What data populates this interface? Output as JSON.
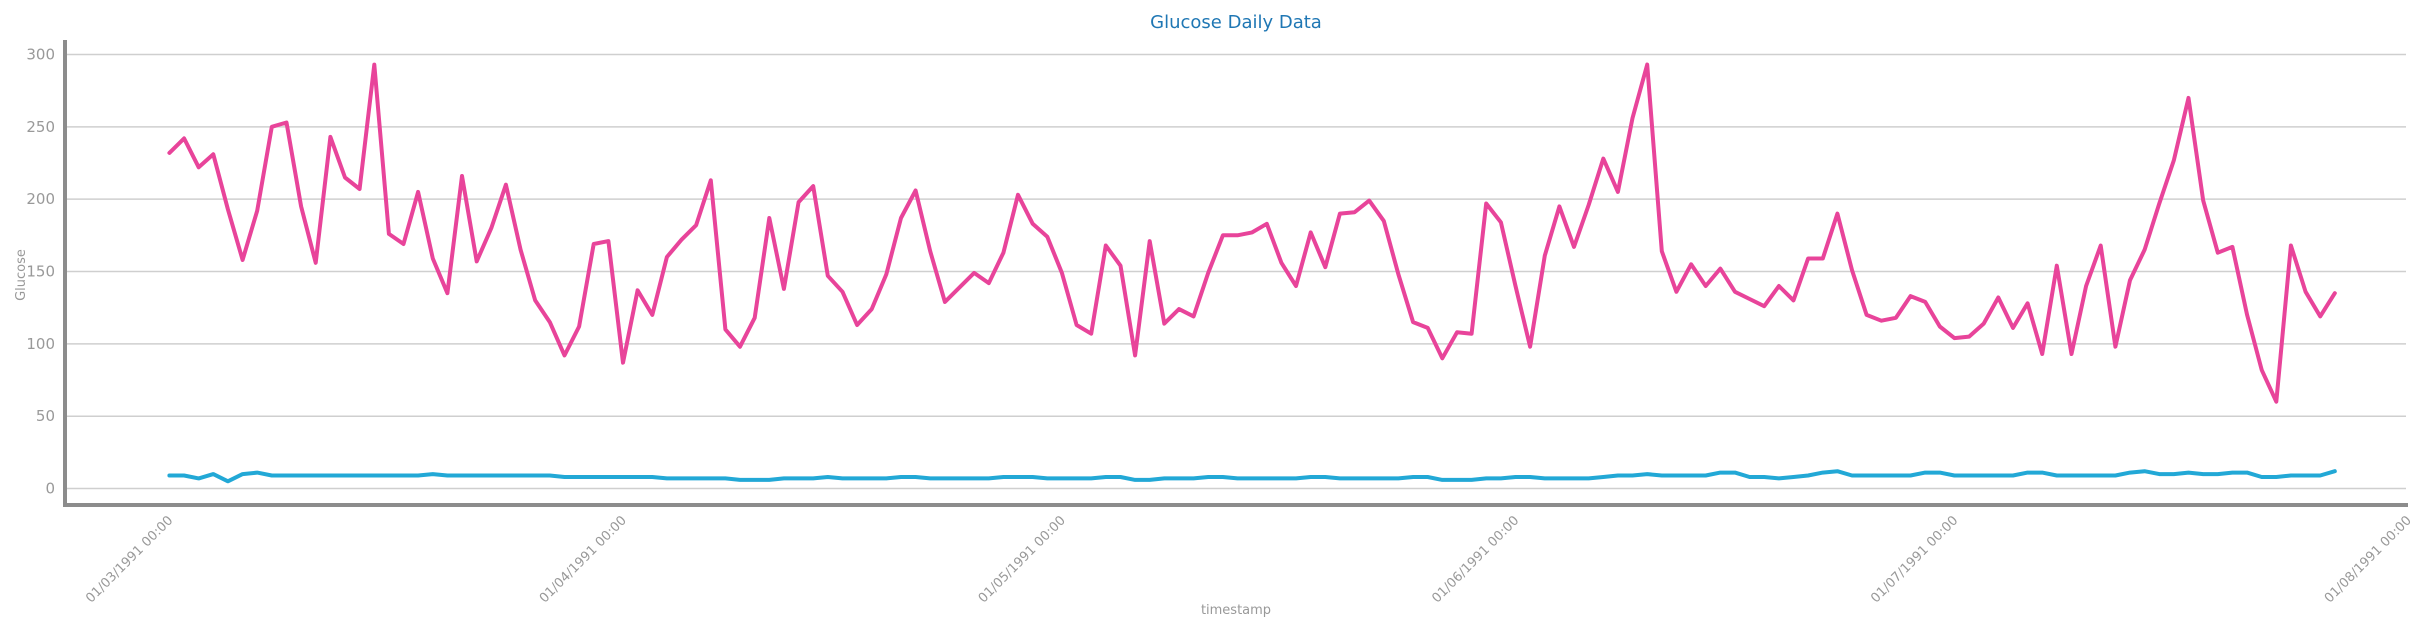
{
  "chart_data": {
    "type": "line",
    "title": "Glucose Daily Data",
    "xlabel": "timestamp",
    "ylabel": "Glucose",
    "ylim": [
      -10,
      310
    ],
    "yticks": [
      0,
      50,
      100,
      150,
      200,
      250,
      300
    ],
    "xlim": [
      "1991-02-22",
      "1991-08-01"
    ],
    "xticks": [
      "01/03/1991 00:00",
      "01/04/1991 00:00",
      "01/05/1991 00:00",
      "01/06/1991 00:00",
      "01/07/1991 00:00",
      "01/08/1991 00:00"
    ],
    "xtick_dates": [
      "1991-03-01",
      "1991-04-01",
      "1991-05-01",
      "1991-06-01",
      "1991-07-01",
      "1991-08-01"
    ],
    "grid": "horizontal",
    "x_start": "1991-03-01",
    "x_step_days": 1,
    "series": [
      {
        "color": "#e8449a",
        "values": [
          232,
          242,
          222,
          231,
          193,
          158,
          192,
          250,
          253,
          195,
          156,
          243,
          215,
          207,
          293,
          176,
          169,
          205,
          159,
          135,
          216,
          157,
          180,
          210,
          165,
          130,
          115,
          92,
          112,
          169,
          171,
          87,
          137,
          120,
          160,
          172,
          182,
          213,
          110,
          98,
          118,
          187,
          138,
          198,
          209,
          147,
          136,
          113,
          124,
          148,
          187,
          206,
          164,
          129,
          139,
          149,
          142,
          163,
          203,
          183,
          174,
          149,
          113,
          107,
          168,
          154,
          92,
          171,
          114,
          124,
          119,
          149,
          175,
          175,
          177,
          183,
          156,
          140,
          177,
          153,
          190,
          191,
          199,
          185,
          148,
          115,
          111,
          90,
          108,
          107,
          197,
          184,
          140,
          98,
          161,
          195,
          167,
          196,
          228,
          205,
          256,
          293,
          164,
          136,
          155,
          140,
          152,
          136,
          131,
          126,
          140,
          130,
          159,
          159,
          190,
          151,
          120,
          116,
          118,
          133,
          129,
          112,
          104,
          105,
          114,
          132,
          111,
          128,
          93,
          154,
          93,
          140,
          168,
          98,
          144,
          165,
          197,
          227,
          270,
          199,
          163,
          167,
          120,
          82,
          60,
          168,
          136,
          119,
          135
        ]
      },
      {
        "color": "#22a8d6",
        "values": [
          9,
          9,
          7,
          10,
          5,
          10,
          11,
          9,
          9,
          9,
          9,
          9,
          9,
          9,
          9,
          9,
          9,
          9,
          10,
          9,
          9,
          9,
          9,
          9,
          9,
          9,
          9,
          8,
          8,
          8,
          8,
          8,
          8,
          8,
          7,
          7,
          7,
          7,
          7,
          6,
          6,
          6,
          7,
          7,
          7,
          8,
          7,
          7,
          7,
          7,
          8,
          8,
          7,
          7,
          7,
          7,
          7,
          8,
          8,
          8,
          7,
          7,
          7,
          7,
          8,
          8,
          6,
          6,
          7,
          7,
          7,
          8,
          8,
          7,
          7,
          7,
          7,
          7,
          8,
          8,
          7,
          7,
          7,
          7,
          7,
          8,
          8,
          6,
          6,
          6,
          7,
          7,
          8,
          8,
          7,
          7,
          7,
          7,
          8,
          9,
          9,
          10,
          9,
          9,
          9,
          9,
          11,
          11,
          8,
          8,
          7,
          8,
          9,
          11,
          12,
          9,
          9,
          9,
          9,
          9,
          11,
          11,
          9,
          9,
          9,
          9,
          9,
          11,
          11,
          9,
          9,
          9,
          9,
          9,
          11,
          12,
          10,
          10,
          11,
          10,
          10,
          11,
          11,
          8,
          8,
          9,
          9,
          9,
          12
        ]
      }
    ]
  }
}
